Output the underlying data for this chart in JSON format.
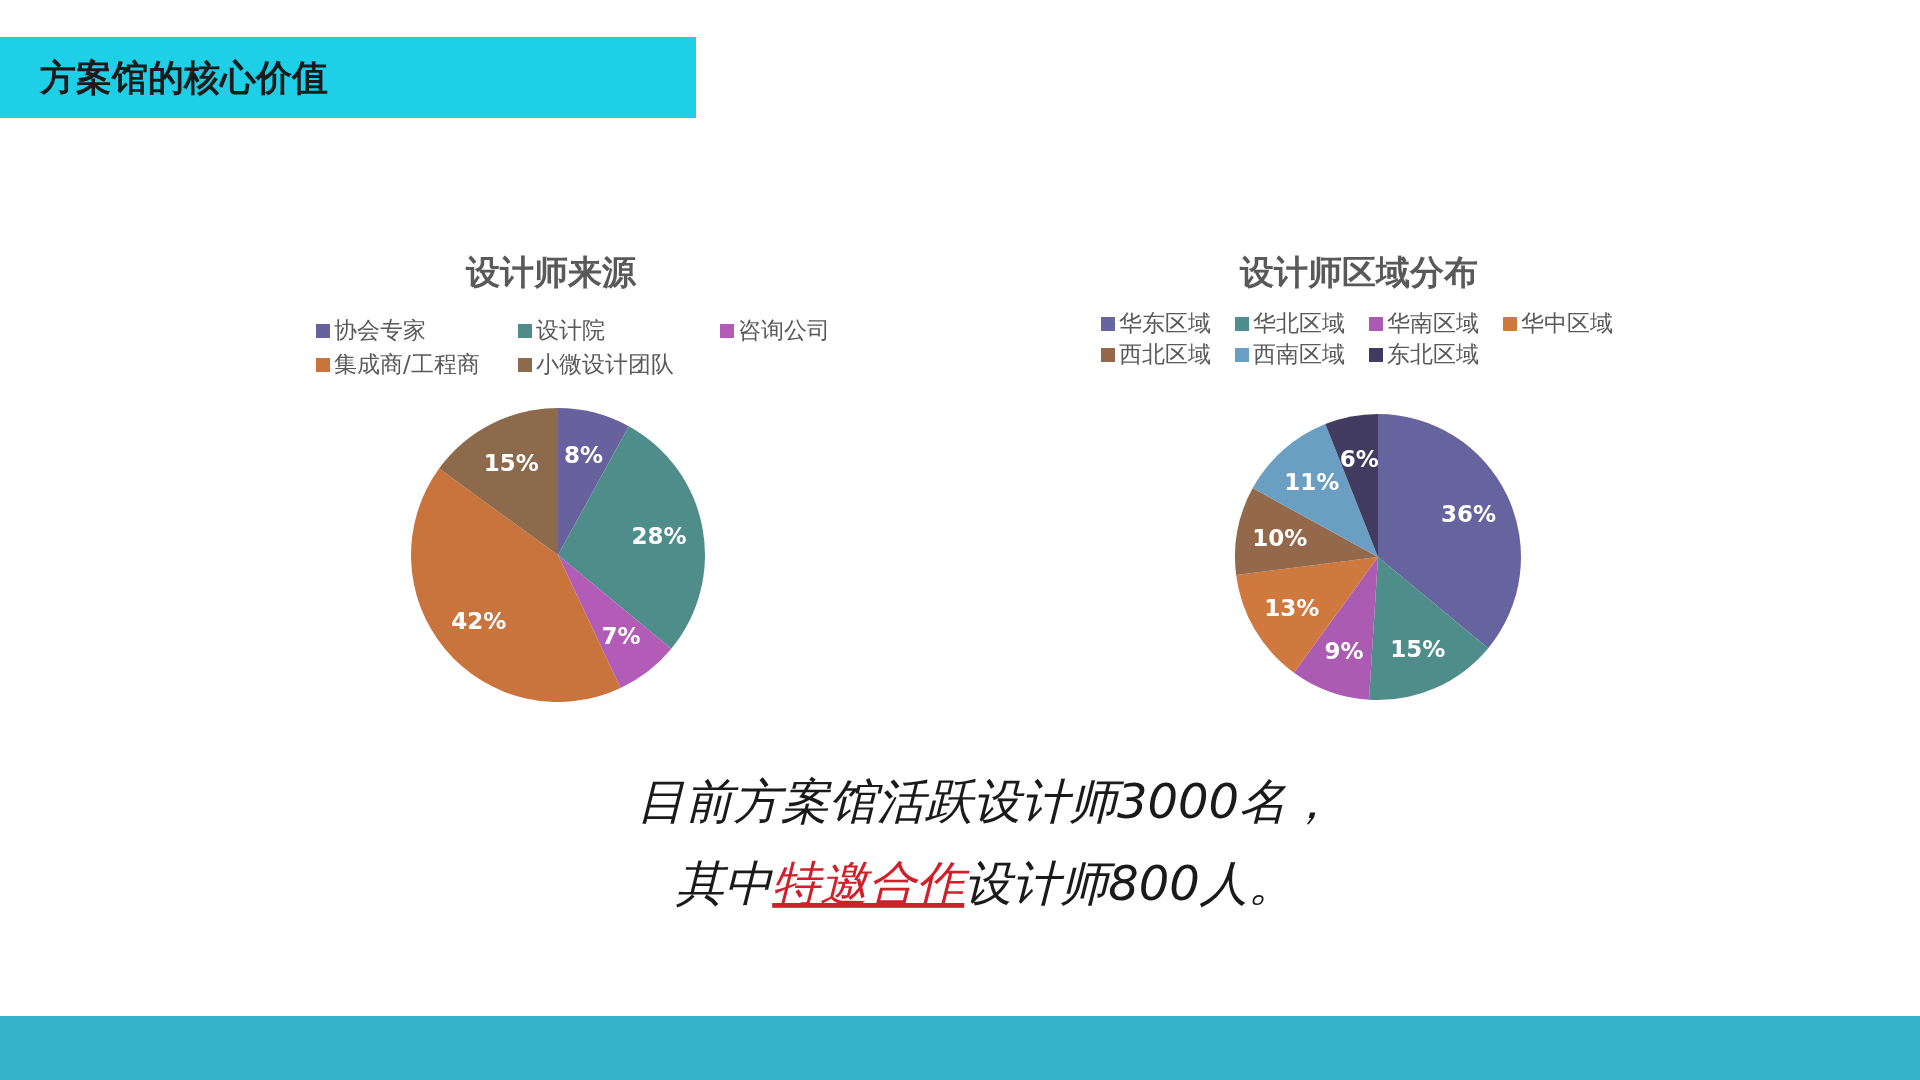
{
  "chart_data": [
    {
      "type": "pie",
      "title": "设计师来源",
      "legend": "top",
      "categories": [
        "协会专家",
        "设计院",
        "咨询公司",
        "集成商/工程商",
        "小微设计团队"
      ],
      "values": [
        8,
        28,
        7,
        42,
        15
      ],
      "value_labels": [
        "8%",
        "28%",
        "7%",
        "42%",
        "15%"
      ],
      "colors": [
        "#67629e",
        "#4f8d8b",
        "#b25cb7",
        "#c9743d",
        "#8d6a4c"
      ]
    },
    {
      "type": "pie",
      "title": "设计师区域分布",
      "legend": "top",
      "categories": [
        "华东区域",
        "华北区域",
        "华南区域",
        "华中区域",
        "西北区域",
        "西南区域",
        "东北区域"
      ],
      "values": [
        36,
        15,
        9,
        13,
        10,
        11,
        6
      ],
      "value_labels": [
        "36%",
        "15%",
        "9%",
        "13%",
        "10%",
        "11%",
        "6%"
      ],
      "colors": [
        "#66649e",
        "#4f8d8b",
        "#ab5cb2",
        "#cf793f",
        "#94694b",
        "#6a9fc3",
        "#403b5f"
      ]
    },
    {
      "type": "other",
      "title": "方案馆的核心价值",
      "annotations": [
        "目前方案馆活跃设计师3000名，",
        "其中",
        "特邀合作",
        "设计师800人。"
      ]
    }
  ]
}
